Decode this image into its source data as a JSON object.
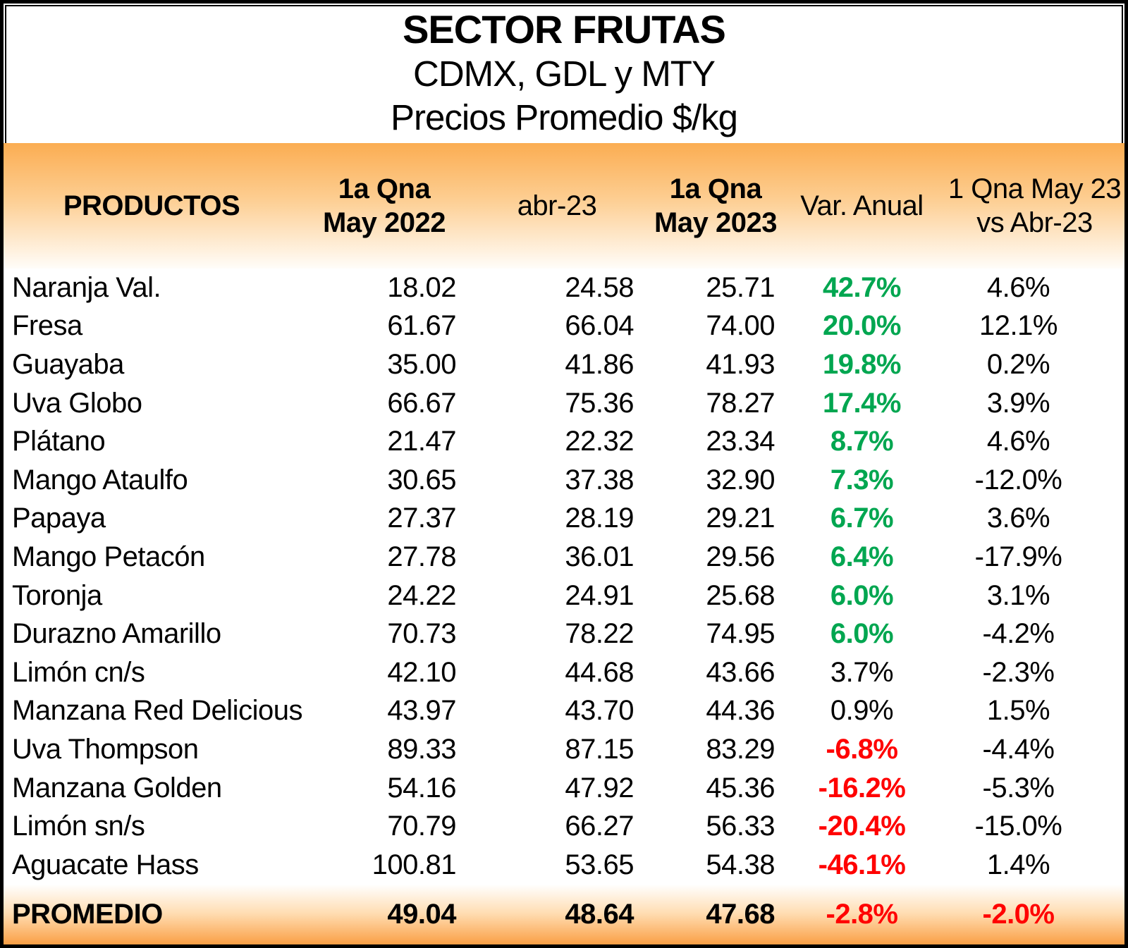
{
  "colors": {
    "band_orange_top": "#FBAD52",
    "band_orange_bottom": "#FA9F45",
    "positive_green": "#00A650",
    "negative_red": "#FF0000",
    "text_black": "#000000",
    "border_black": "#000000"
  },
  "chart_data": {
    "type": "table",
    "title": "SECTOR FRUTAS",
    "subtitle_cities": "CDMX, GDL y MTY",
    "subtitle_units": "Precios Promedio $/kg",
    "columns": [
      "PRODUCTOS",
      "1a Qna\nMay 2022",
      "abr-23",
      "1a Qna\nMay 2023",
      "Var. Anual",
      "1 Qna May 23\nvs Abr-23"
    ],
    "rows": [
      {
        "producto": "Naranja Val.",
        "may2022": "18.02",
        "abr23": "24.58",
        "may2023": "25.71",
        "var_anual": "42.7%",
        "var_trend": "positive",
        "vs_abr23": "4.6%"
      },
      {
        "producto": "Fresa",
        "may2022": "61.67",
        "abr23": "66.04",
        "may2023": "74.00",
        "var_anual": "20.0%",
        "var_trend": "positive",
        "vs_abr23": "12.1%"
      },
      {
        "producto": "Guayaba",
        "may2022": "35.00",
        "abr23": "41.86",
        "may2023": "41.93",
        "var_anual": "19.8%",
        "var_trend": "positive",
        "vs_abr23": "0.2%"
      },
      {
        "producto": "Uva Globo",
        "may2022": "66.67",
        "abr23": "75.36",
        "may2023": "78.27",
        "var_anual": "17.4%",
        "var_trend": "positive",
        "vs_abr23": "3.9%"
      },
      {
        "producto": "Plátano",
        "may2022": "21.47",
        "abr23": "22.32",
        "may2023": "23.34",
        "var_anual": "8.7%",
        "var_trend": "positive",
        "vs_abr23": "4.6%"
      },
      {
        "producto": "Mango Ataulfo",
        "may2022": "30.65",
        "abr23": "37.38",
        "may2023": "32.90",
        "var_anual": "7.3%",
        "var_trend": "positive",
        "vs_abr23": "-12.0%"
      },
      {
        "producto": "Papaya",
        "may2022": "27.37",
        "abr23": "28.19",
        "may2023": "29.21",
        "var_anual": "6.7%",
        "var_trend": "positive",
        "vs_abr23": "3.6%"
      },
      {
        "producto": "Mango Petacón",
        "may2022": "27.78",
        "abr23": "36.01",
        "may2023": "29.56",
        "var_anual": "6.4%",
        "var_trend": "positive",
        "vs_abr23": "-17.9%"
      },
      {
        "producto": "Toronja",
        "may2022": "24.22",
        "abr23": "24.91",
        "may2023": "25.68",
        "var_anual": "6.0%",
        "var_trend": "positive",
        "vs_abr23": "3.1%"
      },
      {
        "producto": "Durazno Amarillo",
        "may2022": "70.73",
        "abr23": "78.22",
        "may2023": "74.95",
        "var_anual": "6.0%",
        "var_trend": "positive",
        "vs_abr23": "-4.2%"
      },
      {
        "producto": "Limón cn/s",
        "may2022": "42.10",
        "abr23": "44.68",
        "may2023": "43.66",
        "var_anual": "3.7%",
        "var_trend": "neutral",
        "vs_abr23": "-2.3%"
      },
      {
        "producto": "Manzana Red Delicious",
        "may2022": "43.97",
        "abr23": "43.70",
        "may2023": "44.36",
        "var_anual": "0.9%",
        "var_trend": "neutral",
        "vs_abr23": "1.5%"
      },
      {
        "producto": "Uva Thompson",
        "may2022": "89.33",
        "abr23": "87.15",
        "may2023": "83.29",
        "var_anual": "-6.8%",
        "var_trend": "negative",
        "vs_abr23": "-4.4%"
      },
      {
        "producto": "Manzana Golden",
        "may2022": "54.16",
        "abr23": "47.92",
        "may2023": "45.36",
        "var_anual": "-16.2%",
        "var_trend": "negative",
        "vs_abr23": "-5.3%"
      },
      {
        "producto": "Limón sn/s",
        "may2022": "70.79",
        "abr23": "66.27",
        "may2023": "56.33",
        "var_anual": "-20.4%",
        "var_trend": "negative",
        "vs_abr23": "-15.0%"
      },
      {
        "producto": "Aguacate Hass",
        "may2022": "100.81",
        "abr23": "53.65",
        "may2023": "54.38",
        "var_anual": "-46.1%",
        "var_trend": "negative",
        "vs_abr23": "1.4%"
      }
    ],
    "promedio": {
      "label": "PROMEDIO",
      "may2022": "49.04",
      "abr23": "48.64",
      "may2023": "47.68",
      "var_anual": "-2.8%",
      "var_anual_trend": "negative",
      "vs_abr23": "-2.0%",
      "vs_abr23_trend": "negative"
    }
  }
}
